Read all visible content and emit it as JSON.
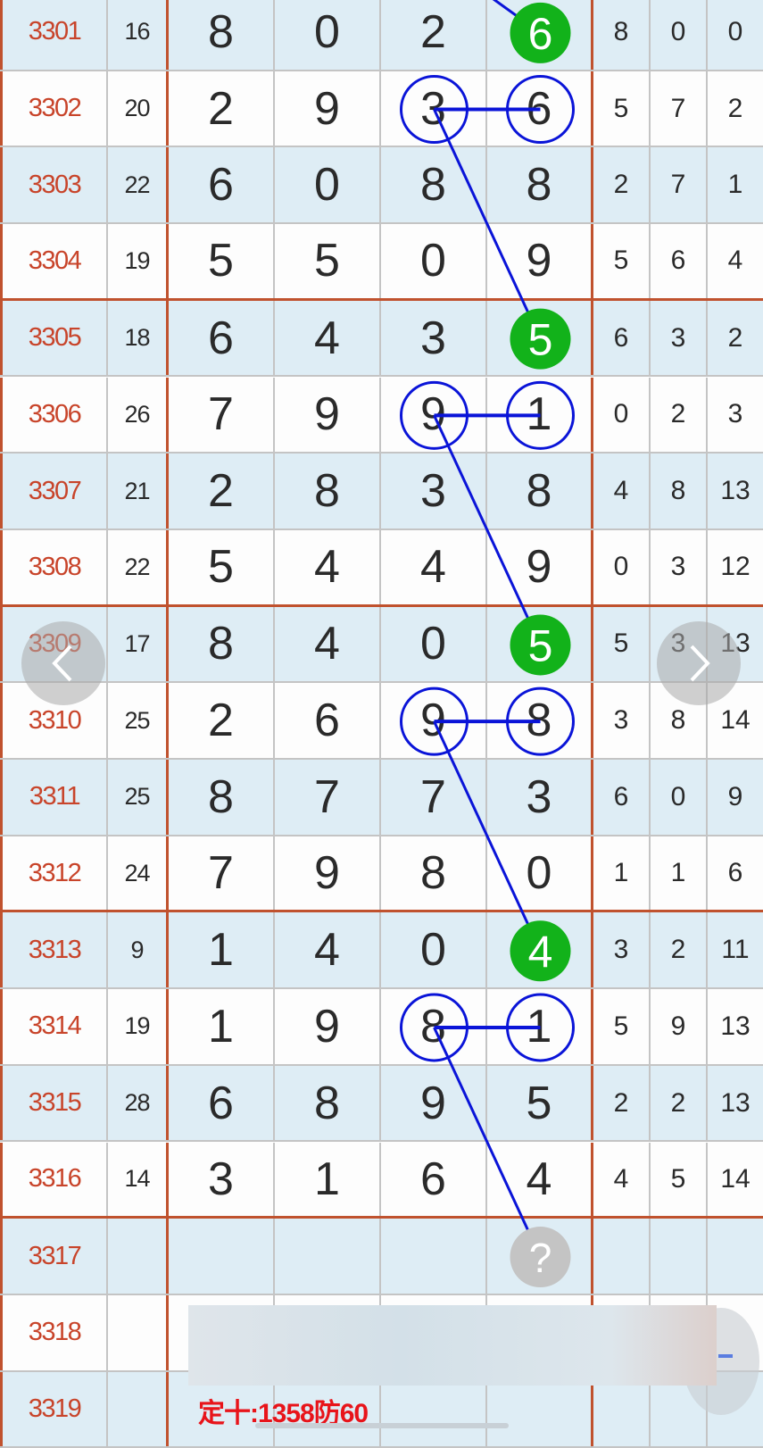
{
  "colors": {
    "accent_red": "#c0522e",
    "id_red": "#c8442a",
    "ball_green": "#12b21a",
    "circle_blue": "#0a14d8",
    "unknown_gray": "#c4c4c4",
    "note_red": "#e8141a"
  },
  "rows": [
    {
      "id": "3301",
      "sum": "16",
      "digits": [
        "8",
        "0",
        "2",
        "6"
      ],
      "stats": [
        "8",
        "0",
        "0"
      ]
    },
    {
      "id": "3302",
      "sum": "20",
      "digits": [
        "2",
        "9",
        "3",
        "6"
      ],
      "stats": [
        "5",
        "7",
        "2"
      ]
    },
    {
      "id": "3303",
      "sum": "22",
      "digits": [
        "6",
        "0",
        "8",
        "8"
      ],
      "stats": [
        "2",
        "7",
        "1"
      ]
    },
    {
      "id": "3304",
      "sum": "19",
      "digits": [
        "5",
        "5",
        "0",
        "9"
      ],
      "stats": [
        "5",
        "6",
        "4"
      ]
    },
    {
      "id": "3305",
      "sum": "18",
      "digits": [
        "6",
        "4",
        "3",
        "5"
      ],
      "stats": [
        "6",
        "3",
        "2"
      ]
    },
    {
      "id": "3306",
      "sum": "26",
      "digits": [
        "7",
        "9",
        "9",
        "1"
      ],
      "stats": [
        "0",
        "2",
        "3"
      ]
    },
    {
      "id": "3307",
      "sum": "21",
      "digits": [
        "2",
        "8",
        "3",
        "8"
      ],
      "stats": [
        "4",
        "8",
        "13"
      ]
    },
    {
      "id": "3308",
      "sum": "22",
      "digits": [
        "5",
        "4",
        "4",
        "9"
      ],
      "stats": [
        "0",
        "3",
        "12"
      ]
    },
    {
      "id": "3309",
      "sum": "17",
      "digits": [
        "8",
        "4",
        "0",
        "5"
      ],
      "stats": [
        "5",
        "3",
        "13"
      ]
    },
    {
      "id": "3310",
      "sum": "25",
      "digits": [
        "2",
        "6",
        "9",
        "8"
      ],
      "stats": [
        "3",
        "8",
        "14"
      ]
    },
    {
      "id": "3311",
      "sum": "25",
      "digits": [
        "8",
        "7",
        "7",
        "3"
      ],
      "stats": [
        "6",
        "0",
        "9"
      ]
    },
    {
      "id": "3312",
      "sum": "24",
      "digits": [
        "7",
        "9",
        "8",
        "0"
      ],
      "stats": [
        "1",
        "1",
        "6"
      ]
    },
    {
      "id": "3313",
      "sum": "9",
      "digits": [
        "1",
        "4",
        "0",
        "4"
      ],
      "stats": [
        "3",
        "2",
        "11"
      ]
    },
    {
      "id": "3314",
      "sum": "19",
      "digits": [
        "1",
        "9",
        "8",
        "1"
      ],
      "stats": [
        "5",
        "9",
        "13"
      ]
    },
    {
      "id": "3315",
      "sum": "28",
      "digits": [
        "6",
        "8",
        "9",
        "5"
      ],
      "stats": [
        "2",
        "2",
        "13"
      ]
    },
    {
      "id": "3316",
      "sum": "14",
      "digits": [
        "3",
        "1",
        "6",
        "4"
      ],
      "stats": [
        "4",
        "5",
        "14"
      ]
    },
    {
      "id": "3317",
      "sum": "",
      "digits": [
        "",
        "",
        "",
        ""
      ],
      "stats": [
        "",
        "",
        ""
      ]
    },
    {
      "id": "3318",
      "sum": "",
      "digits": [
        "",
        "",
        "",
        ""
      ],
      "stats": [
        "",
        "",
        ""
      ]
    },
    {
      "id": "3319",
      "sum": "",
      "digits": [
        "",
        "",
        "",
        ""
      ],
      "stats": [
        "",
        "",
        ""
      ]
    }
  ],
  "highlights": {
    "green_balls": [
      {
        "row": "3301",
        "col": 3
      },
      {
        "row": "3305",
        "col": 3
      },
      {
        "row": "3309",
        "col": 3
      },
      {
        "row": "3313",
        "col": 3
      }
    ],
    "circle_pairs": [
      {
        "row": "3302",
        "cols": [
          2,
          3
        ]
      },
      {
        "row": "3306",
        "cols": [
          2,
          3
        ]
      },
      {
        "row": "3310",
        "cols": [
          2,
          3
        ]
      },
      {
        "row": "3314",
        "cols": [
          2,
          3
        ]
      }
    ],
    "unknown": {
      "row": "3317",
      "col": 3,
      "label": "?"
    }
  },
  "nav": {
    "prev_icon": "chevron-left-icon",
    "next_icon": "chevron-right-icon"
  },
  "note": "定十:1358防60"
}
